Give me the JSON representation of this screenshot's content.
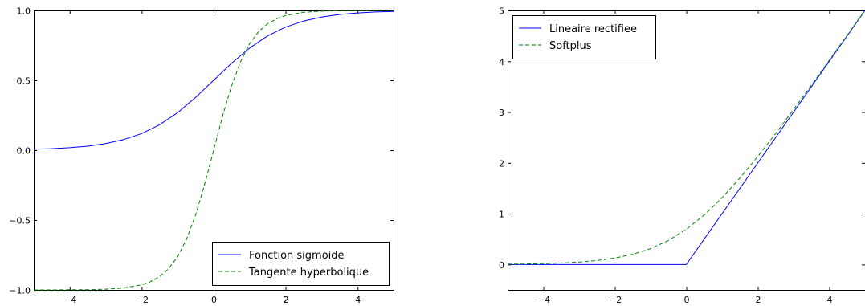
{
  "chart_data": [
    {
      "type": "line",
      "xlim": [
        -5,
        5
      ],
      "ylim": [
        -1,
        1
      ],
      "xticks": [
        -4,
        -2,
        0,
        2,
        4
      ],
      "xtick_labels": [
        "−4",
        "−2",
        "0",
        "2",
        "4"
      ],
      "yticks": [
        -1,
        -0.5,
        0,
        0.5,
        1
      ],
      "ytick_labels": [
        "−1.0",
        "−0.5",
        "0.0",
        "0.5",
        "1.0"
      ],
      "legend_position": "lower-right",
      "grid": false,
      "series": [
        {
          "name": "Fonction sigmoide",
          "color": "#0000ff",
          "style": "solid",
          "x": [
            -5,
            -4.5,
            -4,
            -3.5,
            -3,
            -2.5,
            -2,
            -1.5,
            -1,
            -0.5,
            0,
            0.5,
            1,
            1.5,
            2,
            2.5,
            3,
            3.5,
            4,
            4.5,
            5
          ],
          "y": [
            0.007,
            0.011,
            0.018,
            0.029,
            0.047,
            0.076,
            0.119,
            0.182,
            0.269,
            0.378,
            0.5,
            0.622,
            0.731,
            0.818,
            0.881,
            0.924,
            0.953,
            0.971,
            0.982,
            0.989,
            0.993
          ]
        },
        {
          "name": "Tangente hyperbolique",
          "color": "#008000",
          "style": "dashed",
          "x": [
            -5,
            -4.5,
            -4,
            -3.5,
            -3,
            -2.5,
            -2,
            -1.75,
            -1.5,
            -1.25,
            -1,
            -0.75,
            -0.5,
            -0.25,
            0,
            0.25,
            0.5,
            0.75,
            1,
            1.25,
            1.5,
            1.75,
            2,
            2.5,
            3,
            3.5,
            4,
            4.5,
            5
          ],
          "y": [
            -1.0,
            -1.0,
            -0.999,
            -0.998,
            -0.995,
            -0.987,
            -0.964,
            -0.941,
            -0.905,
            -0.848,
            -0.762,
            -0.635,
            -0.462,
            -0.245,
            0.0,
            0.245,
            0.462,
            0.635,
            0.762,
            0.848,
            0.905,
            0.941,
            0.964,
            0.987,
            0.995,
            0.998,
            0.999,
            1.0,
            1.0
          ]
        }
      ]
    },
    {
      "type": "line",
      "xlim": [
        -5,
        5
      ],
      "ylim": [
        -0.5,
        5
      ],
      "xticks": [
        -4,
        -2,
        0,
        2,
        4
      ],
      "xtick_labels": [
        "−4",
        "−2",
        "0",
        "2",
        "4"
      ],
      "yticks": [
        0,
        1,
        2,
        3,
        4,
        5
      ],
      "ytick_labels": [
        "0",
        "1",
        "2",
        "3",
        "4",
        "5"
      ],
      "legend_position": "upper-left",
      "grid": false,
      "series": [
        {
          "name": "Lineaire rectifiee",
          "color": "#0000ff",
          "style": "solid",
          "x": [
            -5,
            0,
            5
          ],
          "y": [
            0,
            0,
            5
          ]
        },
        {
          "name": "Softplus",
          "color": "#008000",
          "style": "dashed",
          "x": [
            -5,
            -4.5,
            -4,
            -3.5,
            -3,
            -2.5,
            -2,
            -1.5,
            -1,
            -0.5,
            0,
            0.5,
            1,
            1.5,
            2,
            2.5,
            3,
            3.5,
            4,
            4.5,
            5
          ],
          "y": [
            0.007,
            0.011,
            0.018,
            0.03,
            0.049,
            0.079,
            0.127,
            0.201,
            0.313,
            0.474,
            0.693,
            0.974,
            1.313,
            1.701,
            2.127,
            2.579,
            3.049,
            3.53,
            4.018,
            4.511,
            5.007
          ]
        }
      ]
    }
  ]
}
